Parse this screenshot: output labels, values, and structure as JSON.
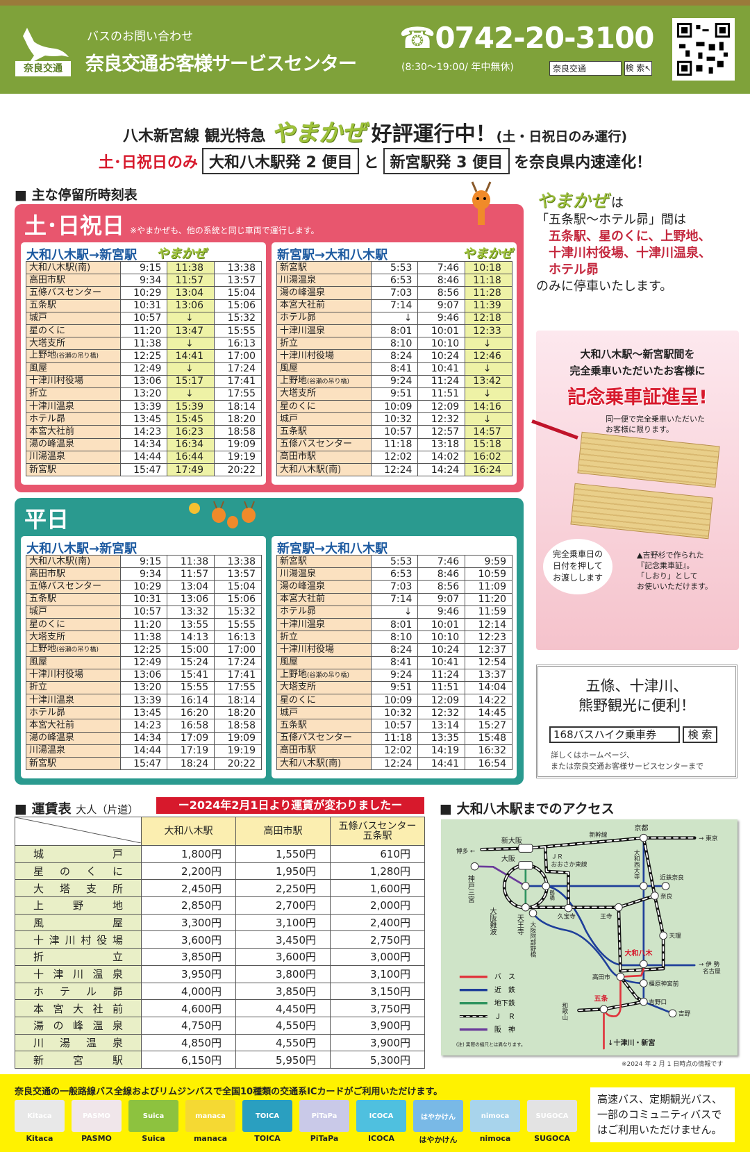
{
  "header": {
    "logo_text": "奈良交通",
    "inquiry_label": "バスのお問い合わせ",
    "center_name": "奈良交通お客様サービスセンター",
    "phone_icon": "telephone-icon",
    "phone": "0742-20-3100",
    "hours": "(8:30～19:00/ 年中無休)",
    "search_value": "奈良交通",
    "search_button": "検 索"
  },
  "headline": {
    "line1_prefix": "八木新宮線 観光特急",
    "yamakaze": "やまかぜ",
    "line1_main": "好評運行中！",
    "line1_suffix": "(土・日祝日のみ運行)",
    "line2_red": "土･日祝日のみ",
    "box1": "大和八木駅発 2 便目",
    "and": "と",
    "box2": "新宮駅発 3 便目",
    "line2_suffix": "を奈良県内速達化！"
  },
  "timetable_section_title": "主な停留所時刻表",
  "weekend": {
    "title": "土･日祝日",
    "note": "※やまかぜも、他の系統と同じ車両で運行します。",
    "color": "#e8566e",
    "yamakaze_label": "やまかぜ",
    "left": {
      "title": "大和八木駅→新宮駅",
      "yamakaze_col": 1,
      "rows": [
        [
          "大和八木駅(南)",
          "9:15",
          "11:38",
          "13:38"
        ],
        [
          "高田市駅",
          "9:34",
          "11:57",
          "13:57"
        ],
        [
          "五條バスセンター",
          "10:29",
          "13:04",
          "15:04"
        ],
        [
          "五条駅",
          "10:31",
          "13:06",
          "15:06"
        ],
        [
          "城戸",
          "10:57",
          "↓",
          "15:32"
        ],
        [
          "星のくに",
          "11:20",
          "13:47",
          "15:55"
        ],
        [
          "大塔支所",
          "11:38",
          "↓",
          "16:13"
        ],
        [
          "上野地(谷瀬の吊り橋)",
          "12:25",
          "14:41",
          "17:00"
        ],
        [
          "風屋",
          "12:49",
          "↓",
          "17:24"
        ],
        [
          "十津川村役場",
          "13:06",
          "15:17",
          "17:41"
        ],
        [
          "折立",
          "13:20",
          "↓",
          "17:55"
        ],
        [
          "十津川温泉",
          "13:39",
          "15:39",
          "18:14"
        ],
        [
          "ホテル昴",
          "13:45",
          "15:45",
          "18:20"
        ],
        [
          "本宮大社前",
          "14:23",
          "16:23",
          "18:58"
        ],
        [
          "湯の峰温泉",
          "14:34",
          "16:34",
          "19:09"
        ],
        [
          "川湯温泉",
          "14:44",
          "16:44",
          "19:19"
        ],
        [
          "新宮駅",
          "15:47",
          "17:49",
          "20:22"
        ]
      ]
    },
    "right": {
      "title": "新宮駅→大和八木駅",
      "yamakaze_col": 2,
      "rows": [
        [
          "新宮駅",
          "5:53",
          "7:46",
          "10:18"
        ],
        [
          "川湯温泉",
          "6:53",
          "8:46",
          "11:18"
        ],
        [
          "湯の峰温泉",
          "7:03",
          "8:56",
          "11:28"
        ],
        [
          "本宮大社前",
          "7:14",
          "9:07",
          "11:39"
        ],
        [
          "ホテル昴",
          "↓",
          "9:46",
          "12:18"
        ],
        [
          "十津川温泉",
          "8:01",
          "10:01",
          "12:33"
        ],
        [
          "折立",
          "8:10",
          "10:10",
          "↓"
        ],
        [
          "十津川村役場",
          "8:24",
          "10:24",
          "12:46"
        ],
        [
          "風屋",
          "8:41",
          "10:41",
          "↓"
        ],
        [
          "上野地(谷瀬の吊り橋)",
          "9:24",
          "11:24",
          "13:42"
        ],
        [
          "大塔支所",
          "9:51",
          "11:51",
          "↓"
        ],
        [
          "星のくに",
          "10:09",
          "12:09",
          "14:16"
        ],
        [
          "城戸",
          "10:32",
          "12:32",
          "↓"
        ],
        [
          "五条駅",
          "10:57",
          "12:57",
          "14:57"
        ],
        [
          "五條バスセンター",
          "11:18",
          "13:18",
          "15:18"
        ],
        [
          "高田市駅",
          "12:02",
          "14:02",
          "16:02"
        ],
        [
          "大和八木駅(南)",
          "12:24",
          "14:24",
          "16:24"
        ]
      ]
    }
  },
  "weekday": {
    "title": "平日",
    "color": "#2a9a8f",
    "left": {
      "title": "大和八木駅→新宮駅",
      "rows": [
        [
          "大和八木駅(南)",
          "9:15",
          "11:38",
          "13:38"
        ],
        [
          "高田市駅",
          "9:34",
          "11:57",
          "13:57"
        ],
        [
          "五條バスセンター",
          "10:29",
          "13:04",
          "15:04"
        ],
        [
          "五条駅",
          "10:31",
          "13:06",
          "15:06"
        ],
        [
          "城戸",
          "10:57",
          "13:32",
          "15:32"
        ],
        [
          "星のくに",
          "11:20",
          "13:55",
          "15:55"
        ],
        [
          "大塔支所",
          "11:38",
          "14:13",
          "16:13"
        ],
        [
          "上野地(谷瀬の吊り橋)",
          "12:25",
          "15:00",
          "17:00"
        ],
        [
          "風屋",
          "12:49",
          "15:24",
          "17:24"
        ],
        [
          "十津川村役場",
          "13:06",
          "15:41",
          "17:41"
        ],
        [
          "折立",
          "13:20",
          "15:55",
          "17:55"
        ],
        [
          "十津川温泉",
          "13:39",
          "16:14",
          "18:14"
        ],
        [
          "ホテル昴",
          "13:45",
          "16:20",
          "18:20"
        ],
        [
          "本宮大社前",
          "14:23",
          "16:58",
          "18:58"
        ],
        [
          "湯の峰温泉",
          "14:34",
          "17:09",
          "19:09"
        ],
        [
          "川湯温泉",
          "14:44",
          "17:19",
          "19:19"
        ],
        [
          "新宮駅",
          "15:47",
          "18:24",
          "20:22"
        ]
      ]
    },
    "right": {
      "title": "新宮駅→大和八木駅",
      "rows": [
        [
          "新宮駅",
          "5:53",
          "7:46",
          "9:59"
        ],
        [
          "川湯温泉",
          "6:53",
          "8:46",
          "10:59"
        ],
        [
          "湯の峰温泉",
          "7:03",
          "8:56",
          "11:09"
        ],
        [
          "本宮大社前",
          "7:14",
          "9:07",
          "11:20"
        ],
        [
          "ホテル昴",
          "↓",
          "9:46",
          "11:59"
        ],
        [
          "十津川温泉",
          "8:01",
          "10:01",
          "12:14"
        ],
        [
          "折立",
          "8:10",
          "10:10",
          "12:23"
        ],
        [
          "十津川村役場",
          "8:24",
          "10:24",
          "12:37"
        ],
        [
          "風屋",
          "8:41",
          "10:41",
          "12:54"
        ],
        [
          "上野地(谷瀬の吊り橋)",
          "9:24",
          "11:24",
          "13:37"
        ],
        [
          "大塔支所",
          "9:51",
          "11:51",
          "14:04"
        ],
        [
          "星のくに",
          "10:09",
          "12:09",
          "14:22"
        ],
        [
          "城戸",
          "10:32",
          "12:32",
          "14:45"
        ],
        [
          "五条駅",
          "10:57",
          "13:14",
          "15:27"
        ],
        [
          "五條バスセンター",
          "11:18",
          "13:35",
          "15:48"
        ],
        [
          "高田市駅",
          "12:02",
          "14:19",
          "16:32"
        ],
        [
          "大和八木駅(南)",
          "12:24",
          "14:41",
          "16:54"
        ]
      ]
    }
  },
  "yamakaze_info": {
    "logo": "やまかぜ",
    "l1": "は",
    "l2": "「五条駅～ホテル昴」間は",
    "red1": "五条駅、星のくに、上野地、",
    "red2": "十津川村役場、十津川温泉、",
    "red3": "ホテル昴",
    "l3": "のみに停車いたします。"
  },
  "promo": {
    "l1": "大和八木駅～新宮駅間を",
    "l2": "完全乗車いただいたお客様に",
    "headline": "記念乗車証進呈!",
    "note1": "同一便で完全乗車いただいた",
    "note2": "お客様に限ります。",
    "bubble1": "完全乗車日の",
    "bubble2": "日付を押して",
    "bubble3": "お渡しします",
    "cap1": "▲吉野杉で作られた",
    "cap2": "『記念乗車証』。",
    "cap3": "「しおり」として",
    "cap4": "お使いいただけます。"
  },
  "hike": {
    "l1": "五條、十津川、",
    "l2": "熊野観光に便利！",
    "search_value": "168バスハイク乗車券",
    "search_button": "検 索",
    "note1": "詳しくはホームページ、",
    "note2": "または奈良交通お客様サービスセンターまで"
  },
  "fare": {
    "title": "運賃表",
    "subtitle": "大人（片道）",
    "badge": "ー2024年2月1日より運賃が変わりましたー",
    "columns": [
      "大和八木駅",
      "高田市駅",
      "五條バスセンター\n五条駅"
    ],
    "rows": [
      [
        "城戸",
        "1,800円",
        "1,550円",
        "610円"
      ],
      [
        "星のくに",
        "2,200円",
        "1,950円",
        "1,280円"
      ],
      [
        "大塔支所",
        "2,450円",
        "2,250円",
        "1,600円"
      ],
      [
        "上野地",
        "2,850円",
        "2,700円",
        "2,000円"
      ],
      [
        "風屋",
        "3,300円",
        "3,100円",
        "2,400円"
      ],
      [
        "十津川村役場",
        "3,600円",
        "3,450円",
        "2,750円"
      ],
      [
        "折立",
        "3,850円",
        "3,600円",
        "3,000円"
      ],
      [
        "十津川温泉",
        "3,950円",
        "3,800円",
        "3,100円"
      ],
      [
        "ホテル昴",
        "4,000円",
        "3,850円",
        "3,150円"
      ],
      [
        "本宮大社前",
        "4,600円",
        "4,450円",
        "3,750円"
      ],
      [
        "湯の峰温泉",
        "4,750円",
        "4,550円",
        "3,900円"
      ],
      [
        "川湯温泉",
        "4,850円",
        "4,550円",
        "3,900円"
      ],
      [
        "新宮駅",
        "6,150円",
        "5,950円",
        "5,300円"
      ]
    ]
  },
  "access": {
    "title": "大和八木駅までのアクセス",
    "stations": {
      "kyoto": "京都",
      "shinosaka": "新大阪",
      "osaka": "大阪",
      "hakata": "博多 ←",
      "tokyo": "→ 東京",
      "shinkansen": "新幹線",
      "jr_higashi1": "ＪＲ",
      "jr_higashi2": "おおさか東線",
      "kobe": "神戸三宮",
      "namba": "大阪難波",
      "tennoji": "天王寺",
      "abeno": "大阪阿部野橋",
      "tsuruhashi": "鶴橋",
      "kyuhoji": "久宝寺",
      "oji": "王寺",
      "saidaiji": "大和西大寺",
      "kintetsunara": "近鉄奈良",
      "nara": "奈良",
      "tenri": "天理",
      "yagi": "大和八木",
      "ise1": "→ 伊 勢",
      "ise2": "名古屋",
      "takada": "高田市",
      "kashihara": "橿原神宮前",
      "yoshinoguchi": "吉野口",
      "yoshino": "吉野",
      "gojo": "五条",
      "wakayama": "和歌山",
      "totsukawa": "↓十津川・新宮"
    },
    "legend": [
      {
        "label": "バ　ス",
        "color": "#e0343c"
      },
      {
        "label": "近　鉄",
        "color": "#1f3f9a"
      },
      {
        "label": "地下鉄",
        "color": "#2f9460"
      },
      {
        "label": "Ｊ　Ｒ",
        "color": "#111111"
      },
      {
        "label": "阪　神",
        "color": "#6a3a9a"
      }
    ],
    "note": "(注) 実際の縮尺とは異なります。",
    "as_of": "※2024 年 2 月 1 日時点の情報です"
  },
  "ic": {
    "text": "奈良交通の一般路線バス全線およびリムジンバスで全国10種類の交通系ICカードがご利用いただけます。",
    "cards": [
      {
        "name": "Kitaca",
        "color": "#e8e8e8"
      },
      {
        "name": "PASMO",
        "color": "#f0e6ea"
      },
      {
        "name": "Suica",
        "color": "#8dc23f"
      },
      {
        "name": "manaca",
        "color": "#f5d933"
      },
      {
        "name": "TOICA",
        "color": "#2a9fc0"
      },
      {
        "name": "PiTaPa",
        "color": "#c9c9e8"
      },
      {
        "name": "ICOCA",
        "color": "#4fc0df"
      },
      {
        "name": "はやかけん",
        "color": "#79b9e6"
      },
      {
        "name": "nimoca",
        "color": "#a8d4ec"
      },
      {
        "name": "SUGOCA",
        "color": "#e3e3e3"
      }
    ],
    "not_usable": "高速バス、定期観光バス、一部のコミュニティバスではご利用いただけません。"
  }
}
